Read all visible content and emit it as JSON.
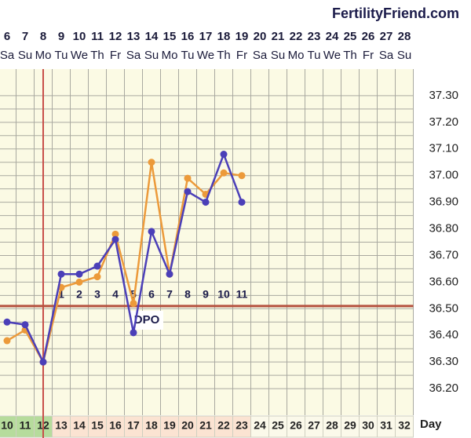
{
  "chart_data": {
    "type": "line",
    "brand": "FertilityFriend.com",
    "categories": [
      "6",
      "7",
      "8",
      "9",
      "10",
      "11",
      "12",
      "13",
      "14",
      "15",
      "16",
      "17",
      "18",
      "19",
      "20",
      "21",
      "22",
      "23",
      "24",
      "25",
      "26",
      "27",
      "28"
    ],
    "weekdays": [
      "Sa",
      "Su",
      "Mo",
      "Tu",
      "We",
      "Th",
      "Fr",
      "Sa",
      "Su",
      "Mo",
      "Tu",
      "We",
      "Th",
      "Fr",
      "Sa",
      "Su",
      "Mo",
      "Tu",
      "We",
      "Th",
      "Fr",
      "Sa",
      "Su"
    ],
    "cycle_days": [
      "10",
      "11",
      "12",
      "13",
      "14",
      "15",
      "16",
      "17",
      "18",
      "19",
      "20",
      "21",
      "22",
      "23",
      "24",
      "25",
      "26",
      "27",
      "28",
      "29",
      "30",
      "31",
      "32"
    ],
    "cycle_day_colors": [
      "#b6dc9c",
      "#b6dc9c",
      "#b6dc9c",
      "#fbe3d2",
      "#fbe3d2",
      "#fbe3d2",
      "#fbe3d2",
      "#fbe3d2",
      "#fbe3d2",
      "#fbe3d2",
      "#fbe3d2",
      "#fbe3d2",
      "#fbe3d2",
      "#fbe3d2",
      "#fbf9ea",
      "#fbf9ea",
      "#fbf9ea",
      "#fbf9ea",
      "#fbf9ea",
      "#fbf9ea",
      "#fbf9ea",
      "#fbf9ea",
      "#fbf9ea"
    ],
    "x_label": "Day",
    "dpo": [
      null,
      null,
      null,
      "1",
      "2",
      "3",
      "4",
      "5",
      "6",
      "7",
      "8",
      "9",
      "10",
      "11",
      null,
      null,
      null,
      null,
      null,
      null,
      null,
      null,
      null
    ],
    "dpo_label": "DPO",
    "series": [
      {
        "color": "#ec9a3a",
        "values": [
          36.38,
          36.42,
          36.3,
          36.58,
          36.6,
          36.62,
          36.78,
          36.52,
          37.05,
          36.63,
          36.99,
          36.93,
          37.01,
          37.0,
          null,
          null,
          null,
          null,
          null,
          null,
          null,
          null,
          null
        ]
      },
      {
        "color": "#4b3fb8",
        "values": [
          36.45,
          36.44,
          36.3,
          36.63,
          36.63,
          36.66,
          36.76,
          36.41,
          36.79,
          36.63,
          36.94,
          36.9,
          37.08,
          36.9,
          null,
          null,
          null,
          null,
          null,
          null,
          null,
          null,
          null
        ]
      }
    ],
    "coverline": 36.51,
    "coverline_color": "#b5523f",
    "ovulation_day": "8",
    "ovulation_color": "#c8504a",
    "ylim": [
      36.1,
      37.4
    ],
    "yticks": [
      {
        "value": 36.2,
        "label": "36.20"
      },
      {
        "value": 36.3,
        "label": "36.30"
      },
      {
        "value": 36.4,
        "label": "36.40"
      },
      {
        "value": 36.5,
        "label": "36.50"
      },
      {
        "value": 36.6,
        "label": "36.60"
      },
      {
        "value": 36.7,
        "label": "36.70"
      },
      {
        "value": 36.8,
        "label": "36.80"
      },
      {
        "value": 36.9,
        "label": "36.90"
      },
      {
        "value": 37.0,
        "label": "37.00"
      },
      {
        "value": 37.1,
        "label": "37.10"
      },
      {
        "value": 37.2,
        "label": "37.20"
      },
      {
        "value": 37.3,
        "label": "37.30"
      }
    ],
    "grid": true
  }
}
